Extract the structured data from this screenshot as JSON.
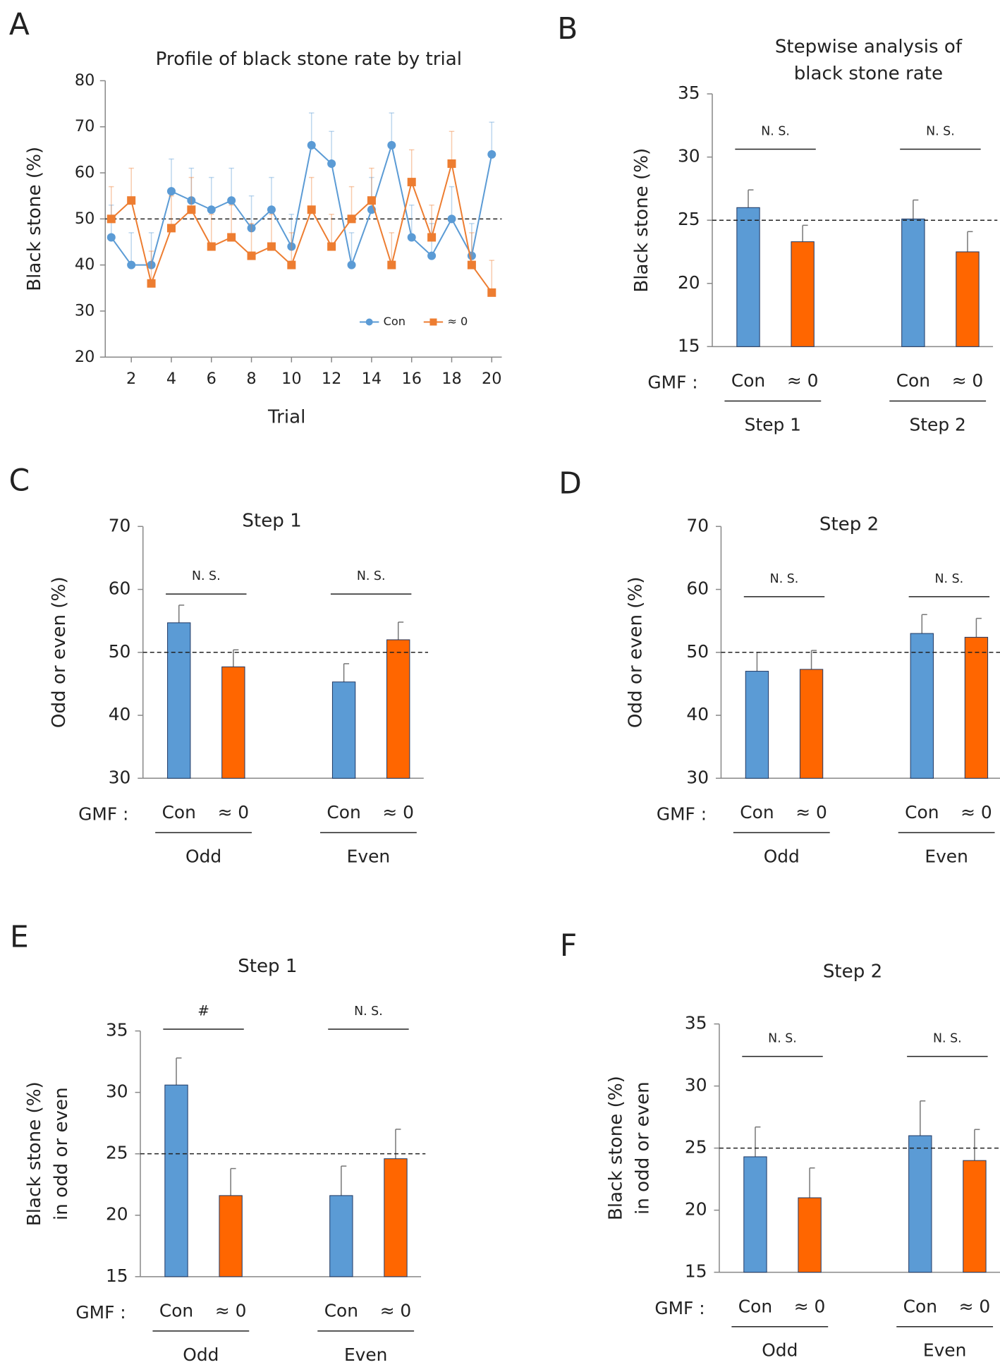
{
  "chart_data": [
    {
      "panel": "A",
      "type": "line",
      "title": "Profile of black stone rate by trial",
      "xlabel": "Trial",
      "ylabel": "Black stone (%)",
      "x": [
        1,
        2,
        3,
        4,
        5,
        6,
        7,
        8,
        9,
        10,
        11,
        12,
        13,
        14,
        15,
        16,
        17,
        18,
        19,
        20
      ],
      "xlim": [
        0.7,
        20.5
      ],
      "xticks": [
        2,
        4,
        6,
        8,
        10,
        12,
        14,
        16,
        18,
        20
      ],
      "ylim": [
        20,
        80
      ],
      "yticks": [
        20,
        30,
        40,
        50,
        60,
        70,
        80
      ],
      "reference_line": 50,
      "legend": "lower right",
      "series": [
        {
          "name": "Con",
          "color": "#5b9bd5",
          "marker": "circle",
          "values": [
            46,
            40,
            40,
            56,
            54,
            52,
            54,
            48,
            52,
            44,
            66,
            62,
            40,
            52,
            66,
            46,
            42,
            50,
            42,
            64
          ],
          "errors": [
            7,
            7,
            7,
            7,
            7,
            7,
            7,
            7,
            7,
            7,
            7,
            7,
            7,
            7,
            7,
            7,
            7,
            7,
            7,
            7
          ]
        },
        {
          "name": "≈ 0",
          "color": "#ed7d31",
          "marker": "square",
          "values": [
            50,
            54,
            36,
            48,
            52,
            44,
            46,
            42,
            44,
            40,
            52,
            44,
            50,
            54,
            40,
            58,
            46,
            62,
            40,
            34
          ],
          "errors": [
            7,
            7,
            7,
            7,
            7,
            7,
            7,
            7,
            7,
            7,
            7,
            7,
            7,
            7,
            7,
            7,
            7,
            7,
            7,
            7
          ]
        }
      ]
    },
    {
      "panel": "B",
      "type": "bar",
      "title": [
        "Stepwise analysis of",
        "black stone rate"
      ],
      "ylabel": "Black stone (%)",
      "group_label": "GMF :",
      "categories": [
        "Step 1",
        "Step 2"
      ],
      "ylim": [
        15,
        35
      ],
      "yticks": [
        15,
        20,
        25,
        30,
        35
      ],
      "reference_line": 25,
      "annotations": [
        {
          "text": "N. S."
        },
        {
          "text": "N. S."
        }
      ],
      "series": [
        {
          "name": "Con",
          "color": "#5b9bd5",
          "values": [
            26.0,
            25.1
          ],
          "errors": [
            1.4,
            1.5
          ]
        },
        {
          "name": "≈ 0",
          "color": "#ff6600",
          "values": [
            23.3,
            22.5
          ],
          "errors": [
            1.3,
            1.6
          ]
        }
      ]
    },
    {
      "panel": "C",
      "type": "bar",
      "title": "Step 1",
      "ylabel": "Odd or even (%)",
      "group_label": "GMF :",
      "categories": [
        "Odd",
        "Even"
      ],
      "ylim": [
        30,
        70
      ],
      "yticks": [
        30,
        40,
        50,
        60,
        70
      ],
      "reference_line": 50,
      "annotations": [
        {
          "text": "N. S."
        },
        {
          "text": "N. S."
        }
      ],
      "series": [
        {
          "name": "Con",
          "color": "#5b9bd5",
          "values": [
            54.7,
            45.3
          ],
          "errors": [
            2.8,
            2.9
          ]
        },
        {
          "name": "≈ 0",
          "color": "#ff6600",
          "values": [
            47.7,
            52.0
          ],
          "errors": [
            2.7,
            2.8
          ]
        }
      ]
    },
    {
      "panel": "D",
      "type": "bar",
      "title": "Step 2",
      "ylabel": "Odd or even (%)",
      "group_label": "GMF :",
      "categories": [
        "Odd",
        "Even"
      ],
      "ylim": [
        30,
        70
      ],
      "yticks": [
        30,
        40,
        50,
        60,
        70
      ],
      "reference_line": 50,
      "annotations": [
        {
          "text": "N. S."
        },
        {
          "text": "N. S."
        }
      ],
      "series": [
        {
          "name": "Con",
          "color": "#5b9bd5",
          "values": [
            47.0,
            53.0
          ],
          "errors": [
            3.0,
            3.0
          ]
        },
        {
          "name": "≈ 0",
          "color": "#ff6600",
          "values": [
            47.3,
            52.4
          ],
          "errors": [
            3.0,
            3.0
          ]
        }
      ]
    },
    {
      "panel": "E",
      "type": "bar",
      "title": "Step 1",
      "ylabel": [
        "Black stone (%)",
        "in odd or even"
      ],
      "group_label": "GMF :",
      "categories": [
        "Odd",
        "Even"
      ],
      "ylim": [
        15,
        35
      ],
      "yticks": [
        15,
        20,
        25,
        30,
        35
      ],
      "reference_line": 25,
      "annotations": [
        {
          "text": "#",
          "color": "#c00000"
        },
        {
          "text": "N. S."
        }
      ],
      "series": [
        {
          "name": "Con",
          "color": "#5b9bd5",
          "values": [
            30.6,
            21.6
          ],
          "errors": [
            2.2,
            2.4
          ]
        },
        {
          "name": "≈ 0",
          "color": "#ff6600",
          "values": [
            21.6,
            24.6
          ],
          "errors": [
            2.2,
            2.4
          ]
        }
      ]
    },
    {
      "panel": "F",
      "type": "bar",
      "title": "Step 2",
      "ylabel": [
        "Black stone (%)",
        "in odd or even"
      ],
      "group_label": "GMF :",
      "categories": [
        "Odd",
        "Even"
      ],
      "ylim": [
        15,
        35
      ],
      "yticks": [
        15,
        20,
        25,
        30,
        35
      ],
      "reference_line": 25,
      "annotations": [
        {
          "text": "N. S."
        },
        {
          "text": "N. S."
        }
      ],
      "series": [
        {
          "name": "Con",
          "color": "#5b9bd5",
          "values": [
            24.3,
            26.0
          ],
          "errors": [
            2.4,
            2.8
          ]
        },
        {
          "name": "≈ 0",
          "color": "#ff6600",
          "values": [
            21.0,
            24.0
          ],
          "errors": [
            2.4,
            2.5
          ]
        }
      ]
    }
  ]
}
